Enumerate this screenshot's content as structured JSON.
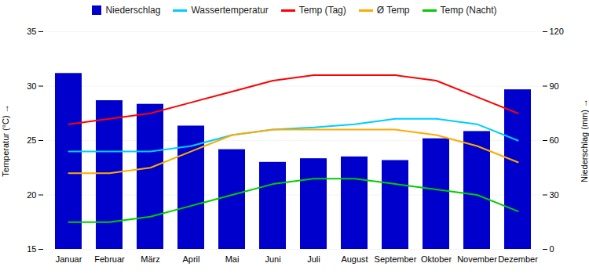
{
  "chart_data": {
    "type": "bar",
    "categories": [
      "Januar",
      "Februar",
      "März",
      "April",
      "Mai",
      "Juni",
      "Juli",
      "August",
      "September",
      "Oktober",
      "November",
      "Dezember"
    ],
    "series": [
      {
        "name": "Niederschlag",
        "type": "bar",
        "axis": "y2",
        "color": "#0000cc",
        "values": [
          97,
          82,
          80,
          68,
          55,
          48,
          50,
          51,
          49,
          61,
          65,
          88
        ]
      },
      {
        "name": "Wassertemperatur",
        "type": "line",
        "color": "#00ccff",
        "values": [
          24.0,
          24.0,
          24.0,
          24.5,
          25.5,
          26.0,
          26.2,
          26.5,
          27.0,
          27.0,
          26.5,
          25.0
        ]
      },
      {
        "name": "Temp (Tag)",
        "type": "line",
        "color": "#ff0000",
        "values": [
          26.5,
          27.0,
          27.5,
          28.5,
          29.5,
          30.5,
          31.0,
          31.0,
          31.0,
          30.5,
          29.0,
          27.5
        ]
      },
      {
        "name": "Ø Temp",
        "type": "line",
        "color": "#ffaa00",
        "values": [
          22.0,
          22.0,
          22.5,
          24.0,
          25.5,
          26.0,
          26.0,
          26.0,
          26.0,
          25.5,
          24.5,
          23.0
        ]
      },
      {
        "name": "Temp (Nacht)",
        "type": "line",
        "color": "#00cc00",
        "values": [
          17.5,
          17.5,
          18.0,
          19.0,
          20.0,
          21.0,
          21.5,
          21.5,
          21.0,
          20.5,
          20.0,
          18.5
        ]
      }
    ],
    "ylabel": "Temperatur (°C)",
    "y2label": "Niederschlag (mm)",
    "ylim": [
      15,
      35
    ],
    "yticks": [
      15,
      20,
      25,
      30,
      35
    ],
    "y2lim": [
      0,
      120
    ],
    "y2ticks": [
      0,
      30,
      60,
      90,
      120
    ],
    "grid": true,
    "legend": "top"
  }
}
